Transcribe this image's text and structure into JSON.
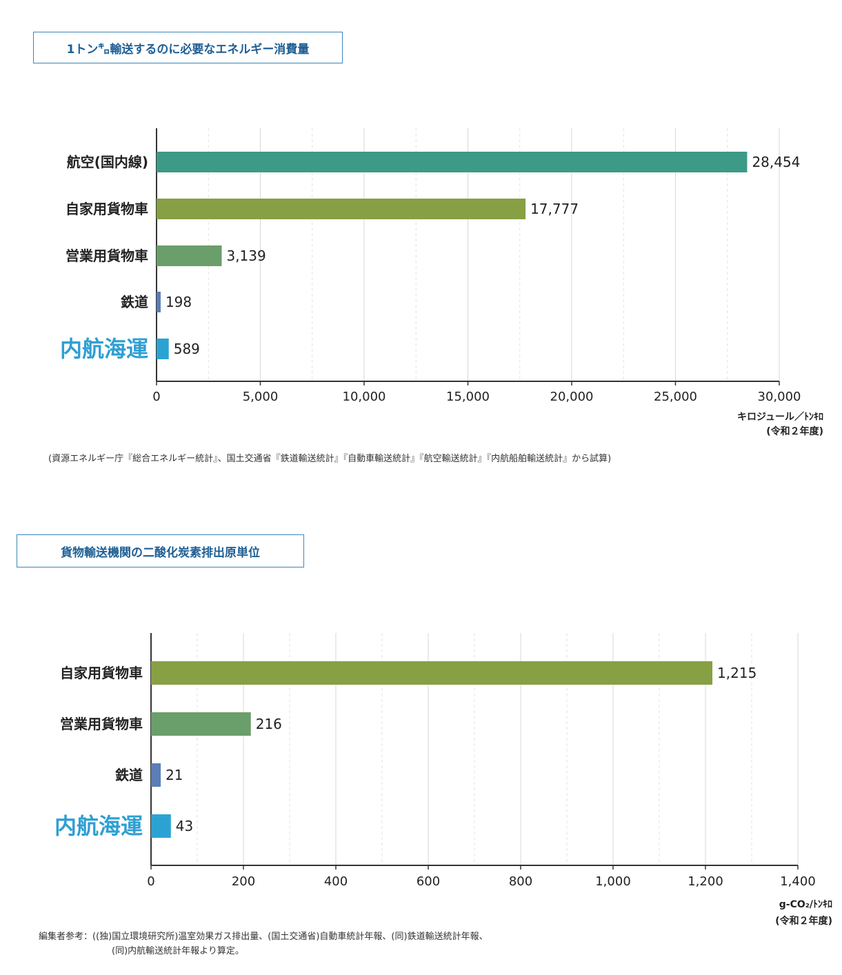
{
  "chart_data": [
    {
      "type": "bar",
      "orientation": "horizontal",
      "title": "1トン㌔輸送するのに必要なエネルギー消費量",
      "categories": [
        "航空(国内線)",
        "自家用貨物車",
        "営業用貨物車",
        "鉄道",
        "内航海運"
      ],
      "values": [
        28454,
        17777,
        3139,
        198,
        589
      ],
      "value_labels": [
        "28,454",
        "17,777",
        "3,139",
        "198",
        "589"
      ],
      "colors": [
        "#3c9a86",
        "#86a043",
        "#6a9e6a",
        "#5b7db8",
        "#2ba3d2"
      ],
      "highlight_category": "内航海運",
      "xlim": [
        0,
        30000
      ],
      "ticks": [
        0,
        5000,
        10000,
        15000,
        20000,
        25000,
        30000
      ],
      "tick_labels": [
        "0",
        "5,000",
        "10,000",
        "15,000",
        "20,000",
        "25,000",
        "30,000"
      ],
      "unit_line1": "キロジュール／ﾄﾝｷﾛ",
      "unit_line2": "(令和２年度)",
      "source": "(資源エネルギー庁『総合エネルギー統計』、国土交通省『鉄道輸送統計』『自動車輸送統計』『航空輸送統計』『内航船舶輸送統計』から試算)",
      "grid": true
    },
    {
      "type": "bar",
      "orientation": "horizontal",
      "title": "貨物輸送機関の二酸化炭素排出原単位",
      "categories": [
        "自家用貨物車",
        "営業用貨物車",
        "鉄道",
        "内航海運"
      ],
      "values": [
        1215,
        216,
        21,
        43
      ],
      "value_labels": [
        "1,215",
        "216",
        "21",
        "43"
      ],
      "colors": [
        "#86a043",
        "#6a9e6a",
        "#5b7db8",
        "#2ba3d2"
      ],
      "highlight_category": "内航海運",
      "xlim": [
        0,
        1400
      ],
      "ticks": [
        0,
        200,
        400,
        600,
        800,
        1000,
        1200,
        1400
      ],
      "tick_labels": [
        "0",
        "200",
        "400",
        "600",
        "800",
        "1,000",
        "1,200",
        "1,400"
      ],
      "unit_line1": "g-CO₂/ﾄﾝｷﾛ",
      "unit_line2": "(令和２年度)",
      "source_line1": "編集者参考：((独)国立環境研究所)温室効果ガス排出量、(国土交通省)自動車統計年報、(同)鉄道輸送統計年報、",
      "source_line2": "(同)内航輸送統計年報より算定。",
      "grid": true
    }
  ]
}
